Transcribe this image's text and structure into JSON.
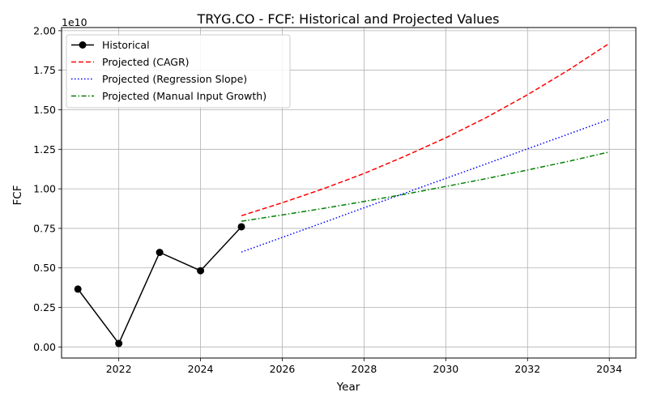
{
  "chart_data": {
    "type": "line",
    "title": "TRYG.CO - FCF: Historical and Projected Values",
    "xlabel": "Year",
    "ylabel": "FCF",
    "y_offset_label": "1e10",
    "xlim": [
      2020.6,
      2034.65
    ],
    "ylim": [
      -0.07,
      2.02
    ],
    "x_ticks": [
      2022,
      2024,
      2026,
      2028,
      2030,
      2032,
      2034
    ],
    "x_tick_labels": [
      "2022",
      "2024",
      "2026",
      "2028",
      "2030",
      "2032",
      "2034"
    ],
    "y_ticks": [
      0,
      0.25,
      0.5,
      0.75,
      1.0,
      1.25,
      1.5,
      1.75,
      2.0
    ],
    "y_tick_labels": [
      "0.00",
      "0.25",
      "0.50",
      "0.75",
      "1.00",
      "1.25",
      "1.50",
      "1.75",
      "2.00"
    ],
    "grid": true,
    "legend_position": "top-left",
    "series": [
      {
        "name": "Historical",
        "color": "#000000",
        "style": "solid-marker",
        "x": [
          2021,
          2022,
          2023,
          2024,
          2025
        ],
        "y": [
          0.366,
          0.022,
          0.598,
          0.482,
          0.76
        ]
      },
      {
        "name": "Projected (CAGR)",
        "color": "#ff0000",
        "style": "dashed",
        "x": [
          2025,
          2026,
          2027,
          2028,
          2029,
          2030,
          2031,
          2032,
          2033,
          2034
        ],
        "y": [
          0.83,
          0.912,
          1.0,
          1.097,
          1.206,
          1.323,
          1.452,
          1.595,
          1.751,
          1.92
        ]
      },
      {
        "name": "Projected (Regression Slope)",
        "color": "#0000ff",
        "style": "dotted",
        "x": [
          2025,
          2026,
          2027,
          2028,
          2029,
          2030,
          2031,
          2032,
          2033,
          2034
        ],
        "y": [
          0.6,
          0.693,
          0.786,
          0.88,
          0.973,
          1.066,
          1.159,
          1.253,
          1.346,
          1.44
        ]
      },
      {
        "name": "Projected (Manual Input Growth)",
        "color": "#008000",
        "style": "dashdot",
        "x": [
          2025,
          2026,
          2027,
          2028,
          2029,
          2030,
          2031,
          2032,
          2033,
          2034
        ],
        "y": [
          0.795,
          0.835,
          0.876,
          0.92,
          0.966,
          1.015,
          1.065,
          1.119,
          1.174,
          1.233
        ]
      }
    ]
  }
}
